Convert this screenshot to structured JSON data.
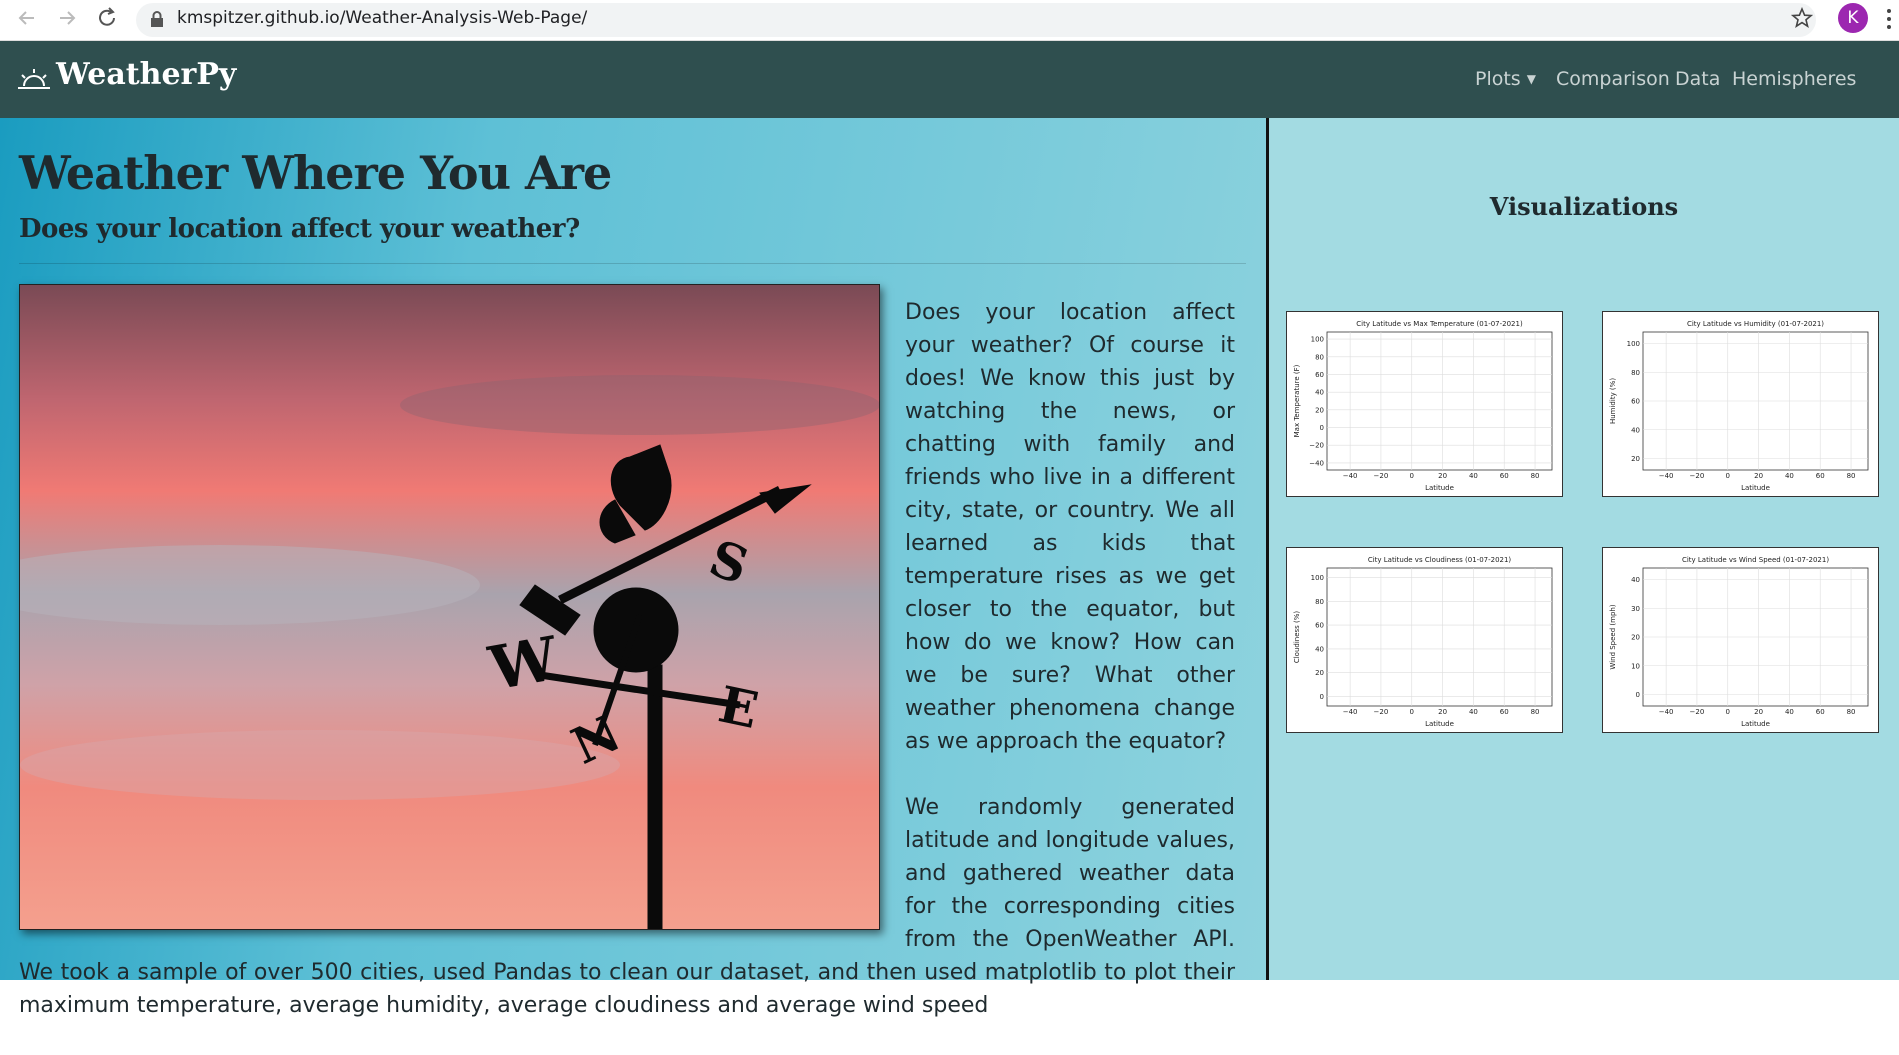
{
  "browser": {
    "url": "kmspitzer.github.io/Weather-Analysis-Web-Page/",
    "avatar": "K"
  },
  "navbar": {
    "brand": "WeatherPy",
    "links": [
      "Plots",
      "Comparison",
      "Data",
      "Hemispheres"
    ]
  },
  "main": {
    "title": "Weather Where You Are",
    "subtitle": "Does your location affect your weather?",
    "paragraphs": [
      "Does your location affect your weather? Of course it does! We know this just by watching the news, or chatting with family and friends who live in a different city, state, or country. We all learned as kids that temperature rises as we get closer to the equator, but how do we know? How can we be sure? What other weather phenomena change as we approach the equator?",
      "We randomly generated latitude and longitude values, and gathered weather data for the corresponding cities from the OpenWeather API. We took a sample of over 500 cities, used Pandas to clean our dataset, and then used matplotlib to plot their maximum temperature, average humidity, average cloudiness and average wind speed"
    ]
  },
  "sidebar": {
    "title": "Visualizations",
    "plots": [
      {
        "title": "City Latitude vs Max Temperature (01-07-2021)",
        "xlabel": "Latitude",
        "ylabel": "Max Temperature (F)",
        "xticks": [
          "−40",
          "−20",
          "0",
          "20",
          "40",
          "60",
          "80"
        ],
        "yticks": [
          "100",
          "80",
          "60",
          "40",
          "20",
          "0",
          "−20",
          "−40"
        ]
      },
      {
        "title": "City Latitude vs Humidity (01-07-2021)",
        "xlabel": "Latitude",
        "ylabel": "Humidity (%)",
        "xticks": [
          "−40",
          "−20",
          "0",
          "20",
          "40",
          "60",
          "80"
        ],
        "yticks": [
          "100",
          "80",
          "60",
          "40",
          "20"
        ]
      },
      {
        "title": "City Latitude vs Cloudiness (01-07-2021)",
        "xlabel": "Latitude",
        "ylabel": "Cloudiness (%)",
        "xticks": [
          "−40",
          "−20",
          "0",
          "20",
          "40",
          "60",
          "80"
        ],
        "yticks": [
          "100",
          "80",
          "60",
          "40",
          "20",
          "0"
        ]
      },
      {
        "title": "City Latitude vs Wind Speed (01-07-2021)",
        "xlabel": "Latitude",
        "ylabel": "Wind Speed (mph)",
        "xticks": [
          "−40",
          "−20",
          "0",
          "20",
          "40",
          "60",
          "80"
        ],
        "yticks": [
          "40",
          "30",
          "20",
          "10",
          "0"
        ]
      }
    ]
  }
}
